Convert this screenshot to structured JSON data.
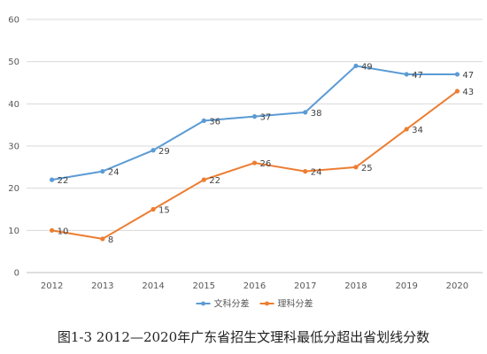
{
  "chart_data": {
    "type": "line",
    "x": [
      "2012",
      "2013",
      "2014",
      "2015",
      "2016",
      "2017",
      "2018",
      "2019",
      "2020"
    ],
    "series": [
      {
        "name": "文科分差",
        "color": "#5B9BD5",
        "values": [
          22,
          24,
          29,
          36,
          37,
          38,
          49,
          47,
          47
        ]
      },
      {
        "name": "理科分差",
        "color": "#ED7D31",
        "values": [
          10,
          8,
          15,
          22,
          26,
          24,
          25,
          34,
          43
        ]
      }
    ],
    "ylim": [
      0,
      60
    ],
    "yticks": [
      0,
      10,
      20,
      30,
      40,
      50,
      60
    ],
    "grid": true,
    "legend": "bottom",
    "data_labels": true
  },
  "caption": "图1-3 2012—2020年广东省招生文理科最低分超出省划线分数"
}
